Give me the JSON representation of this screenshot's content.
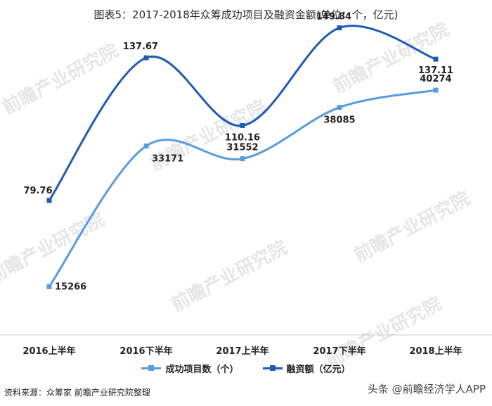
{
  "colors": {
    "series_light": "#5a9be0",
    "series_dark": "#1f5bb3",
    "axis": "#cccccc",
    "watermark": "#e6e6e6"
  },
  "title": "图表5：2017-2018年众筹成功项目及融资金额(单位：个，亿元)",
  "source": "资料来源：众筹家 前瞻产业研究院整理",
  "credit": "头条 @前瞻经济学人APP",
  "watermark_text": "前瞻产业研究院",
  "chart_data": {
    "type": "line",
    "categories": [
      "2016上半年",
      "2016下半年",
      "2017上半年",
      "2017下半年",
      "2018上半年"
    ],
    "series": [
      {
        "name": "成功项目数（个）",
        "values": [
          15266,
          33171,
          31552,
          38085,
          40274
        ],
        "labels": [
          "15266",
          "33171",
          "31552",
          "38085",
          "40274"
        ]
      },
      {
        "name": "融资额（亿元）",
        "values": [
          79.76,
          137.67,
          110.16,
          149.84,
          137.11
        ],
        "labels": [
          "79.76",
          "137.67",
          "110.16",
          "149.84",
          "137.11"
        ]
      }
    ],
    "xlabel": "",
    "ylabel": "",
    "axes": "dual-y (hidden)",
    "ylim_left": [
      0,
      80000
    ],
    "ylim_right": [
      0,
      200
    ],
    "grid": false,
    "legend": "bottom-center"
  }
}
